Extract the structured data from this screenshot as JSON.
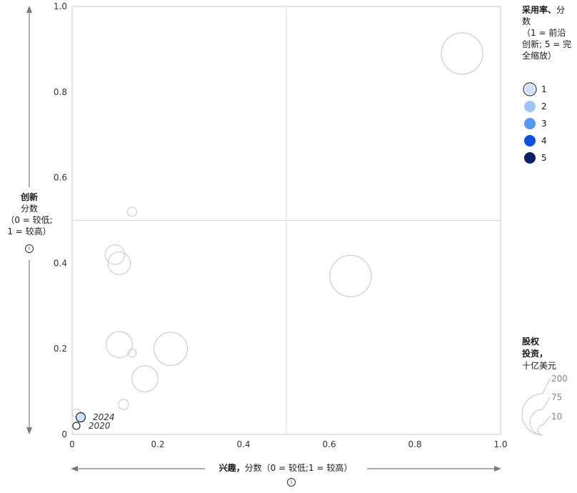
{
  "chart_data": {
    "type": "scatter",
    "xlabel": {
      "bold": "兴趣，",
      "rest": "分数（0 = 较低;1 = 较高）"
    },
    "ylabel": {
      "bold": "创新",
      "line1": "分数",
      "line2": "（0 = 较低;",
      "line3": "1 = 较高）"
    },
    "xlim": [
      0,
      1
    ],
    "ylim": [
      0,
      1
    ],
    "x_ticks": [
      "0",
      "0.2",
      "0.4",
      "0.6",
      "0.8",
      "1.0"
    ],
    "y_ticks": [
      "0",
      "0.2",
      "0.4",
      "0.6",
      "0.8",
      "1.0"
    ],
    "grid": "center-quadrant-lines",
    "bubbles": [
      {
        "x": 0.91,
        "y": 0.89,
        "size": 200
      },
      {
        "x": 0.65,
        "y": 0.37,
        "size": 200
      },
      {
        "x": 0.23,
        "y": 0.2,
        "size": 130
      },
      {
        "x": 0.11,
        "y": 0.21,
        "size": 80
      },
      {
        "x": 0.17,
        "y": 0.13,
        "size": 80
      },
      {
        "x": 0.11,
        "y": 0.4,
        "size": 60
      },
      {
        "x": 0.1,
        "y": 0.42,
        "size": 45
      },
      {
        "x": 0.14,
        "y": 0.52,
        "size": 10
      },
      {
        "x": 0.14,
        "y": 0.19,
        "size": 8
      },
      {
        "x": 0.12,
        "y": 0.07,
        "size": 12
      },
      {
        "x": 0.01,
        "y": 0.05,
        "size": 8
      }
    ],
    "highlighted": [
      {
        "x": 0.02,
        "y": 0.04,
        "label": "2024",
        "adoption": 1
      },
      {
        "x": 0.01,
        "y": 0.02,
        "label": "2020",
        "adoption": 1
      }
    ],
    "legend_adoption": {
      "title_bold": "采用率、",
      "title_rest": "分数",
      "subtitle": "（1 = 前沿创新; 5 = 完全缩放）",
      "entries": [
        {
          "label": "1",
          "color": "#cfe0fb"
        },
        {
          "label": "2",
          "color": "#9ec3f7"
        },
        {
          "label": "3",
          "color": "#5a97f2"
        },
        {
          "label": "4",
          "color": "#0a4fe0"
        },
        {
          "label": "5",
          "color": "#0b1f6b"
        }
      ]
    },
    "legend_size": {
      "title_bold": "股权",
      "title_bold2": "投资，",
      "title_rest": "十亿美元",
      "values": [
        "200",
        "75",
        "10"
      ]
    }
  },
  "colors": {
    "bubble_stroke": "#c4c4c4",
    "grid": "#dcdcdc",
    "axis_arrow": "#7a7a7a",
    "highlight_fill": "#c9dcf6"
  },
  "info_symbol": "i"
}
